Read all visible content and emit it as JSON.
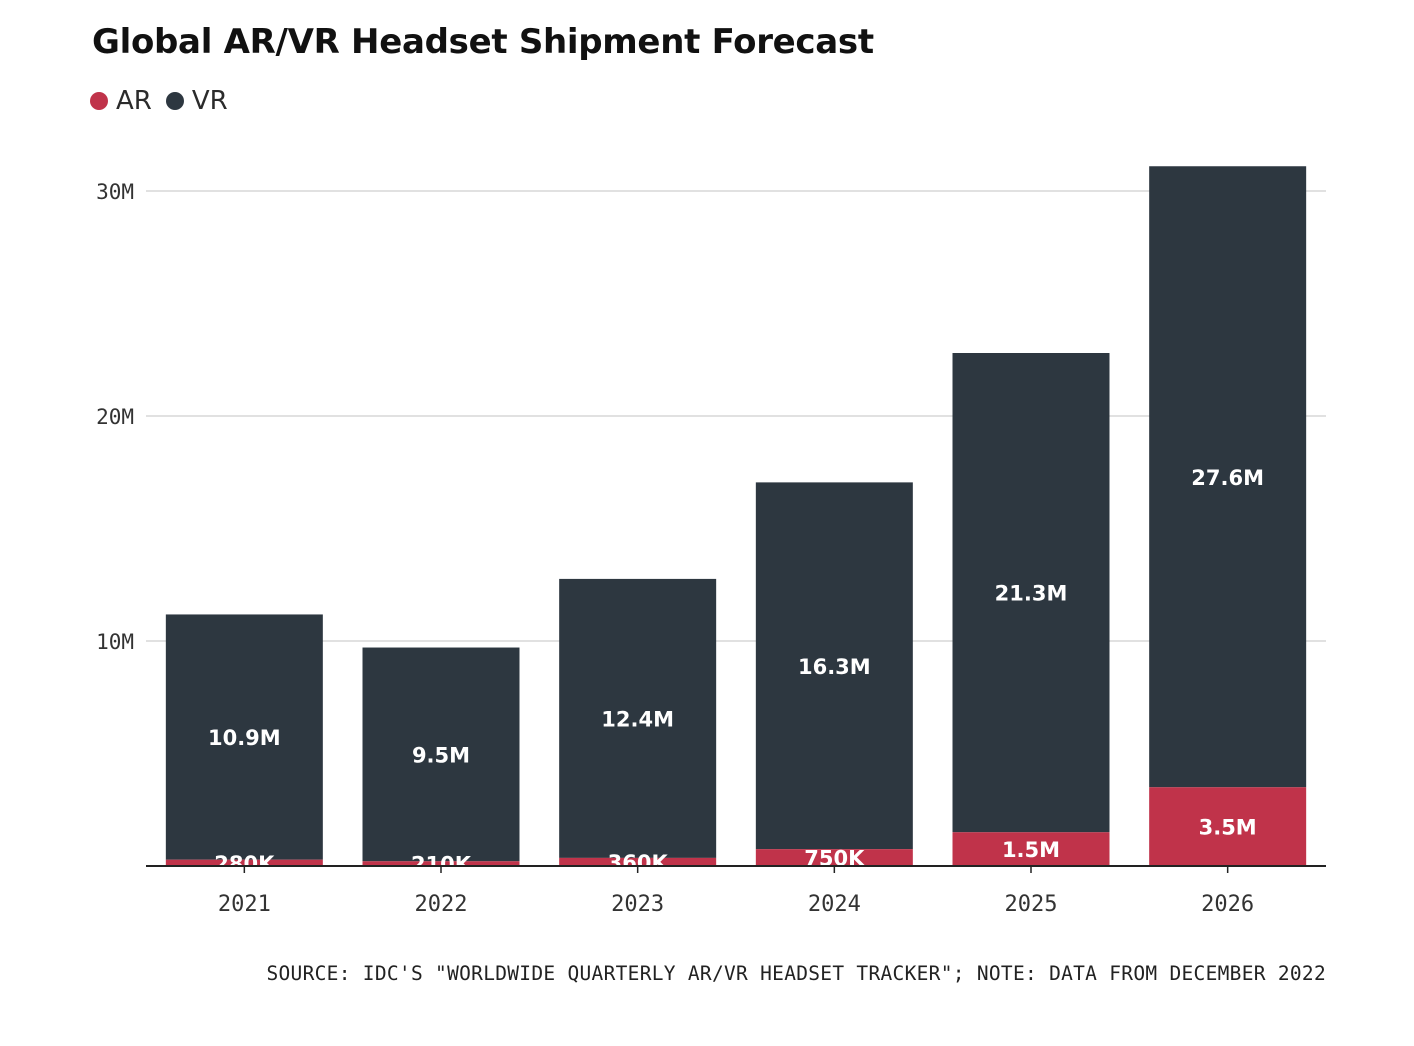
{
  "chart_data": {
    "type": "bar",
    "stacked": true,
    "title": "Global AR/VR Headset Shipment Forecast",
    "categories": [
      "2021",
      "2022",
      "2023",
      "2024",
      "2025",
      "2026"
    ],
    "series": [
      {
        "name": "AR",
        "color": "#c0334a",
        "values": [
          0.28,
          0.21,
          0.36,
          0.75,
          1.5,
          3.5
        ],
        "labels": [
          "280K",
          "210K",
          "360K",
          "750K",
          "1.5M",
          "3.5M"
        ]
      },
      {
        "name": "VR",
        "color": "#2d3740",
        "values": [
          10.9,
          9.5,
          12.4,
          16.3,
          21.3,
          27.6
        ],
        "labels": [
          "10.9M",
          "9.5M",
          "12.4M",
          "16.3M",
          "21.3M",
          "27.6M"
        ]
      }
    ],
    "ylim": [
      0,
      31
    ],
    "yticks": [
      10,
      20,
      30
    ],
    "ytick_labels": [
      "10M",
      "20M",
      "30M"
    ],
    "grid": true,
    "legend": "top-left",
    "source": "SOURCE: IDC'S \"WORLDWIDE QUARTERLY AR/VR HEADSET TRACKER\"; NOTE: DATA FROM DECEMBER 2022"
  }
}
